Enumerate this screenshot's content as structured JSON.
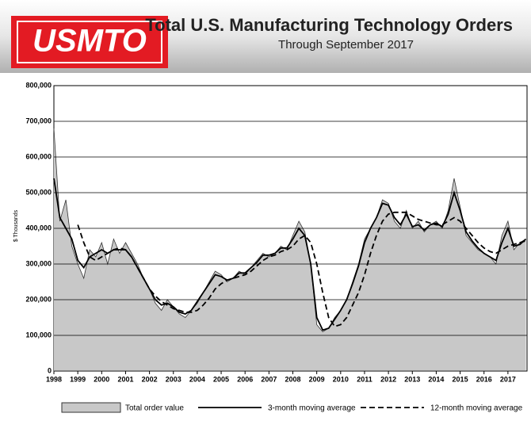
{
  "header": {
    "logo": "USMTO"
  },
  "chart_data": {
    "type": "line",
    "title": "Total U.S. Manufacturing Technology Orders",
    "subtitle": "Through September  2017",
    "y_label": "$ Thousands",
    "x": [
      1998,
      1998.25,
      1998.5,
      1998.75,
      1999,
      1999.25,
      1999.5,
      1999.75,
      2000,
      2000.25,
      2000.5,
      2000.75,
      2001,
      2001.25,
      2001.5,
      2001.75,
      2002,
      2002.25,
      2002.5,
      2002.75,
      2003,
      2003.25,
      2003.5,
      2003.75,
      2004,
      2004.25,
      2004.5,
      2004.75,
      2005,
      2005.25,
      2005.5,
      2005.75,
      2006,
      2006.25,
      2006.5,
      2006.75,
      2007,
      2007.25,
      2007.5,
      2007.75,
      2008,
      2008.25,
      2008.5,
      2008.75,
      2009,
      2009.25,
      2009.5,
      2009.75,
      2010,
      2010.25,
      2010.5,
      2010.75,
      2011,
      2011.25,
      2011.5,
      2011.75,
      2012,
      2012.25,
      2012.5,
      2012.75,
      2013,
      2013.25,
      2013.5,
      2013.75,
      2014,
      2014.25,
      2014.5,
      2014.75,
      2015,
      2015.25,
      2015.5,
      2015.75,
      2016,
      2016.25,
      2016.5,
      2016.75,
      2017,
      2017.25,
      2017.5,
      2017.75
    ],
    "series": [
      {
        "name": "Total order value",
        "kind": "area",
        "color": "#c8c8c8",
        "values": [
          680000,
          420000,
          480000,
          350000,
          300000,
          260000,
          340000,
          320000,
          360000,
          300000,
          370000,
          330000,
          360000,
          330000,
          300000,
          260000,
          230000,
          190000,
          170000,
          200000,
          180000,
          160000,
          150000,
          170000,
          190000,
          220000,
          250000,
          280000,
          270000,
          250000,
          260000,
          280000,
          270000,
          290000,
          310000,
          330000,
          320000,
          330000,
          350000,
          340000,
          380000,
          420000,
          390000,
          300000,
          130000,
          110000,
          120000,
          150000,
          170000,
          200000,
          250000,
          300000,
          370000,
          400000,
          430000,
          480000,
          470000,
          420000,
          400000,
          450000,
          400000,
          420000,
          390000,
          410000,
          420000,
          400000,
          450000,
          540000,
          460000,
          380000,
          360000,
          340000,
          330000,
          320000,
          300000,
          380000,
          420000,
          340000,
          360000,
          370000
        ]
      },
      {
        "name": "3-month moving average",
        "kind": "solid",
        "color": "#000000",
        "values": [
          540000,
          430000,
          400000,
          370000,
          310000,
          290000,
          320000,
          330000,
          340000,
          330000,
          340000,
          340000,
          340000,
          320000,
          290000,
          260000,
          230000,
          200000,
          185000,
          190000,
          180000,
          165000,
          160000,
          170000,
          195000,
          220000,
          245000,
          270000,
          265000,
          255000,
          260000,
          275000,
          275000,
          290000,
          305000,
          325000,
          325000,
          330000,
          345000,
          345000,
          370000,
          400000,
          380000,
          300000,
          150000,
          115000,
          120000,
          145000,
          170000,
          200000,
          245000,
          295000,
          360000,
          400000,
          430000,
          470000,
          465000,
          430000,
          410000,
          440000,
          405000,
          410000,
          395000,
          410000,
          415000,
          405000,
          440000,
          500000,
          450000,
          390000,
          365000,
          345000,
          330000,
          320000,
          310000,
          360000,
          400000,
          350000,
          355000,
          370000
        ]
      },
      {
        "name": "12-month moving average",
        "kind": "dashed",
        "color": "#000000",
        "values": [
          null,
          null,
          null,
          null,
          410000,
          360000,
          320000,
          310000,
          320000,
          330000,
          340000,
          345000,
          340000,
          320000,
          290000,
          260000,
          230000,
          210000,
          195000,
          185000,
          175000,
          170000,
          165000,
          165000,
          170000,
          185000,
          205000,
          230000,
          245000,
          255000,
          260000,
          265000,
          270000,
          280000,
          295000,
          310000,
          320000,
          325000,
          335000,
          340000,
          350000,
          370000,
          380000,
          360000,
          300000,
          220000,
          150000,
          125000,
          130000,
          150000,
          185000,
          220000,
          270000,
          330000,
          380000,
          420000,
          440000,
          445000,
          445000,
          445000,
          435000,
          425000,
          420000,
          415000,
          410000,
          410000,
          420000,
          430000,
          420000,
          400000,
          380000,
          360000,
          345000,
          335000,
          330000,
          340000,
          350000,
          355000,
          360000,
          365000
        ]
      }
    ],
    "xlim": [
      1998,
      2017.8
    ],
    "xticks": [
      1998,
      1999,
      2000,
      2001,
      2002,
      2003,
      2004,
      2005,
      2006,
      2007,
      2008,
      2009,
      2010,
      2011,
      2012,
      2013,
      2014,
      2015,
      2016,
      2017
    ],
    "ylim": [
      0,
      800000
    ],
    "yticks": [
      0,
      {
        "value": 100000,
        "label": "100,000"
      },
      {
        "value": 200000,
        "label": "200,000"
      },
      {
        "value": 300000,
        "label": "300,000"
      },
      {
        "value": 400000,
        "label": "400,000"
      },
      {
        "value": 500000,
        "label": "500,000"
      },
      {
        "value": 600000,
        "label": "600,000"
      },
      {
        "value": 700000,
        "label": "700,000"
      },
      {
        "value": 800000,
        "label": "800,000"
      }
    ],
    "grid": true
  }
}
